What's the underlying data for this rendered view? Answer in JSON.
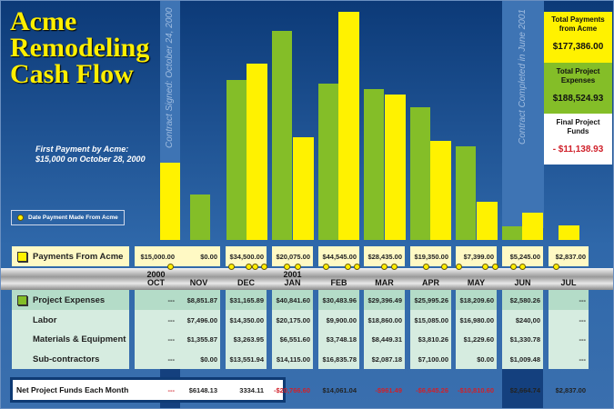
{
  "title_lines": [
    "Acme",
    "Remodeling",
    "Cash Flow"
  ],
  "note_lines": [
    "First Payment by Acme:",
    "$15,000 on October 28, 2000"
  ],
  "legend_label": "Date Payment Made From Acme",
  "contract_signed": "Contract Signed: October 24, 2000",
  "contract_completed": "Contract Completed in June 2001",
  "summary": {
    "payments_label": "Total Payments from Acme",
    "payments_value": "$177,386.00",
    "expenses_label": "Total Project Expenses",
    "expenses_value": "$188,524.93",
    "final_label": "Final Project Funds",
    "final_value": "- $11,138.93"
  },
  "row_labels": {
    "payments": "Payments From Acme",
    "expenses": "Project Expenses",
    "labor": "Labor",
    "materials": "Materials & Equipment",
    "subs": "Sub-contractors",
    "net": "Net Project Funds Each Month"
  },
  "years": {
    "oct": "2000",
    "jan": "2001"
  },
  "months": [
    "OCT",
    "NOV",
    "DEC",
    "JAN",
    "FEB",
    "MAR",
    "APR",
    "MAY",
    "JUN",
    "JUL"
  ],
  "payments": [
    "$15,000.00",
    "$0.00",
    "$34,500.00",
    "$20,075.00",
    "$44,545.00",
    "$28,435.00",
    "$19,350.00",
    "$7,399.00",
    "$5,245.00",
    "$2,837.00"
  ],
  "expenses": [
    "---",
    "$8,851.87",
    "$31,165.89",
    "$40,841.60",
    "$30,483.96",
    "$29,396.49",
    "$25,995.26",
    "$18,209.60",
    "$2,580.26",
    "---"
  ],
  "labor": [
    "---",
    "$7,496.00",
    "$14,350.00",
    "$20,175.00",
    "$9,900.00",
    "$18,860.00",
    "$15,085.00",
    "$16,980.00",
    "$240,00",
    "---"
  ],
  "materials": [
    "---",
    "$1,355.87",
    "$3,263.95",
    "$6,551.60",
    "$3,748.18",
    "$8,449.31",
    "$3,810.26",
    "$1,229.60",
    "$1,330.78",
    "---"
  ],
  "subs": [
    "---",
    "$0.00",
    "$13,551.94",
    "$14,115.00",
    "$16,835.78",
    "$2,087.18",
    "$7,100.00",
    "$0.00",
    "$1,009.48",
    "---"
  ],
  "net": [
    "---",
    "$6148.13",
    "3334.11",
    "-$20,766.60",
    "$14,061.04",
    "-$961.49",
    "-$6,645.26",
    "-$10,810.60",
    "$2,664.74",
    "$2,837.00"
  ],
  "colors": {
    "payments": "#fff200",
    "expenses": "#84be28",
    "negative": "#d0202a",
    "background": "#1d4f90"
  },
  "chart_data": {
    "type": "bar",
    "categories": [
      "OCT",
      "NOV",
      "DEC",
      "JAN",
      "FEB",
      "MAR",
      "APR",
      "MAY",
      "JUN",
      "JUL"
    ],
    "series": [
      {
        "name": "Payments From Acme",
        "values": [
          15000,
          0,
          34500,
          20075,
          44545,
          28435,
          19350,
          7399,
          5245,
          2837
        ]
      },
      {
        "name": "Project Expenses",
        "values": [
          0,
          8851.87,
          31165.89,
          40841.6,
          30483.96,
          29396.49,
          25995.26,
          18209.6,
          2580.26,
          0
        ]
      }
    ],
    "payment_dots_per_month": [
      1,
      0,
      4,
      2,
      3,
      2,
      3,
      2,
      2,
      1
    ]
  }
}
